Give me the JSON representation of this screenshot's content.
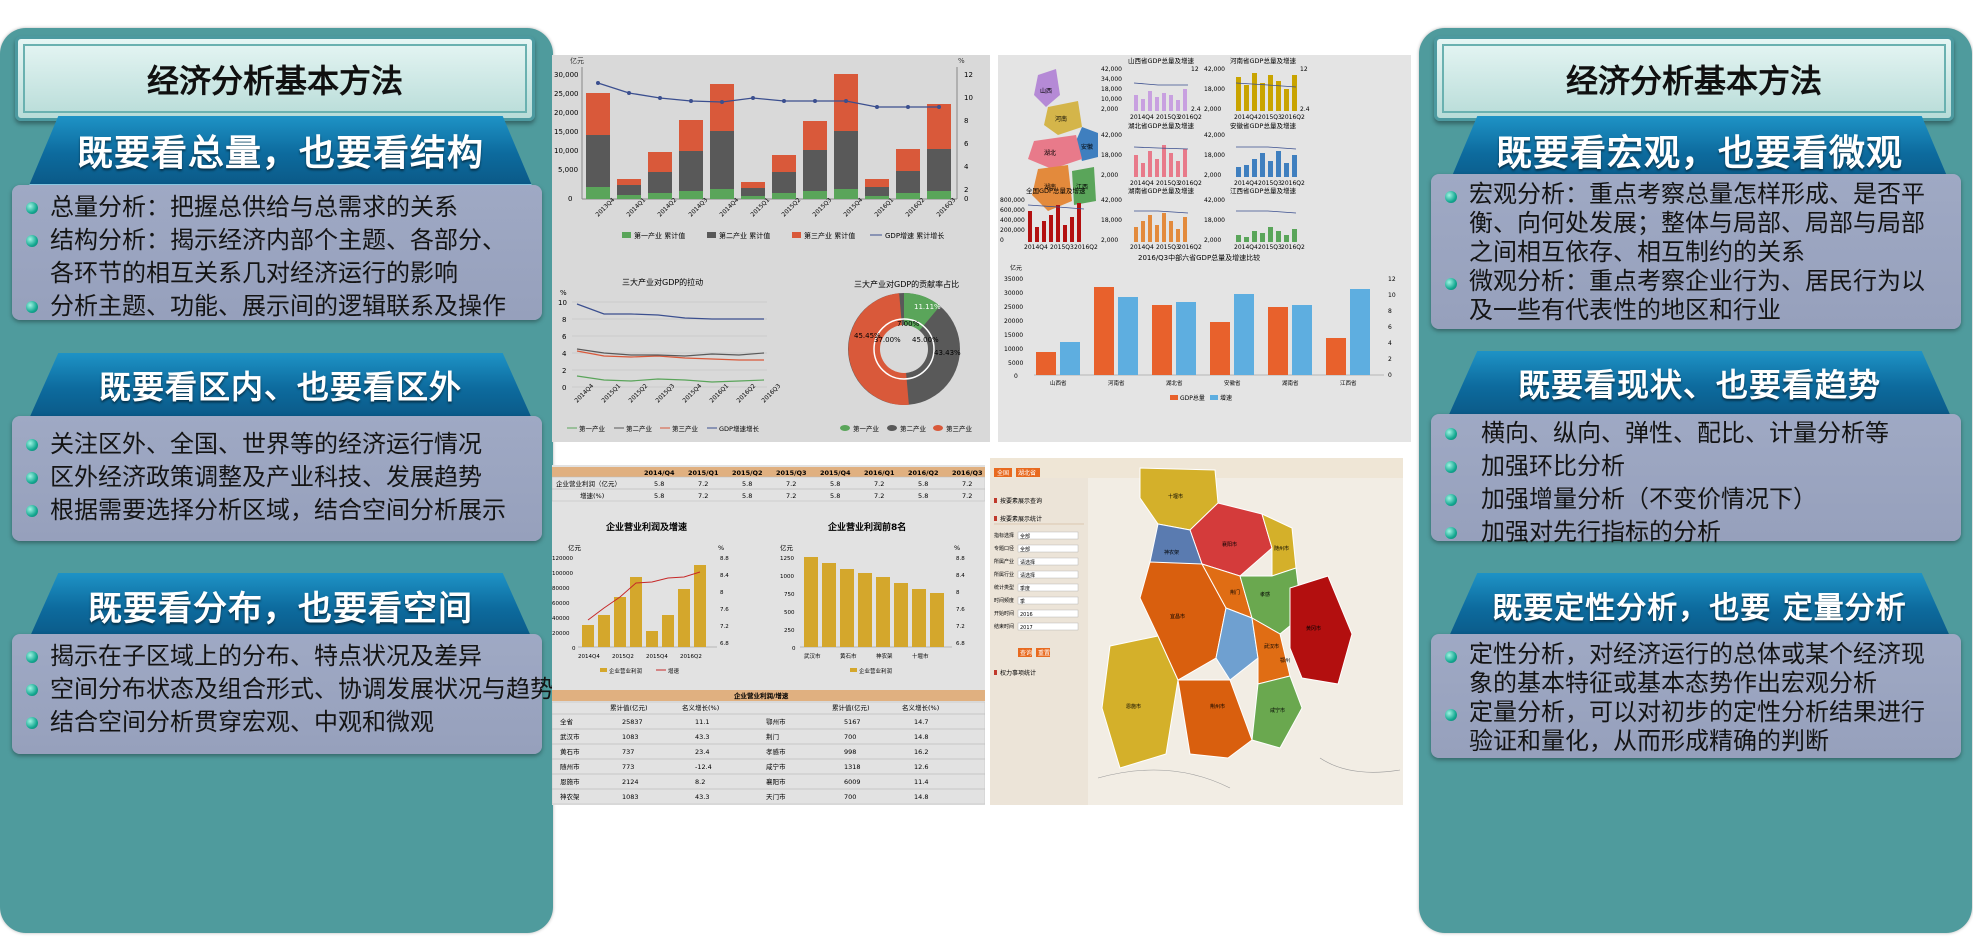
{
  "left": {
    "title": "经济分析基本方法",
    "sections": [
      {
        "heading": "既要看总量，也要看结构",
        "items": [
          "总量分析：把握总供给与总需求的关系",
          "结构分析：揭示经济内部个主题、各部分、",
          "各环节的相互关系几对经济运行的影响",
          "分析主题、功能、展示间的逻辑联系及操作"
        ]
      },
      {
        "heading": "既要看区内、也要看区外",
        "items": [
          "关注区外、全国、世界等的经济运行情况",
          "区外经济政策调整及产业科技、发展趋势",
          "根据需要选择分析区域，结合空间分析展示"
        ]
      },
      {
        "heading": "既要看分布，也要看空间",
        "items": [
          "揭示在子区域上的分布、特点状况及差异",
          "空间分布状态及组合形式、协调发展状况与趋势",
          "结合空间分析贯穿宏观、中观和微观"
        ]
      }
    ]
  },
  "right": {
    "title": "经济分析基本方法",
    "sections": [
      {
        "heading": "既要看宏观，也要看微观",
        "items": [
          "宏观分析：重点考察总量怎样形成、是否平",
          "衡、向何处发展；整体与局部、局部与局部",
          "之间相互依存、相互制约的关系",
          "微观分析：重点考察企业行为、居民行为以",
          "及一些有代表性的地区和行业"
        ]
      },
      {
        "heading": "既要看现状、也要看趋势",
        "items": [
          "横向、纵向、弹性、配比、计量分析等",
          "加强环比分析",
          "加强增量分析（不变价情况下）",
          "加强对先行指标的分析"
        ]
      },
      {
        "heading": "既要定性分析，也要 定量分析",
        "items": [
          "定性分析，对经济运行的总体或某个经济现",
          "象的基本特征或基本态势作出宏观分析",
          "定量分析，可以对初步的定性分析结果进行",
          "验证和量化，从而形成精确的判断"
        ]
      }
    ]
  },
  "shots": {
    "top_left": {
      "chart1": {
        "ylabel_left": "亿元",
        "ylabel_right": "%",
        "ticks_left": [
          "30,000",
          "25,000",
          "20,000",
          "15,000",
          "10,000",
          "5,000",
          "0"
        ],
        "ticks_right": [
          "12",
          "10",
          "8",
          "6",
          "4",
          "2",
          "0"
        ],
        "categories": [
          "2013Q4",
          "2014Q1",
          "2014Q2",
          "2014Q3",
          "2014Q4",
          "2015Q1",
          "2015Q2",
          "2015Q3",
          "2015Q4",
          "2016Q1",
          "2016Q2",
          "2016Q3"
        ],
        "legend": [
          "第一产业 累计值",
          "第二产业 累计值",
          "第三产业 累计值",
          "GDP增速 累计增长"
        ]
      },
      "chart2": {
        "title": "三大产业对GDP的拉动",
        "ylabel": "%",
        "ticks": [
          "10",
          "8",
          "6",
          "4",
          "2",
          "0"
        ],
        "categories": [
          "2014Q4",
          "2015Q1",
          "2015Q2",
          "2015Q3",
          "2015Q4",
          "2016Q1",
          "2016Q2",
          "2016Q3"
        ],
        "legend": [
          "第一产业",
          "第二产业",
          "第三产业",
          "GDP增速增长"
        ]
      },
      "chart3": {
        "title": "三大产业对GDP的贡献率占比",
        "labels": [
          "11.11%",
          "7.00%",
          "45.00%",
          "37.00%",
          "45.45%",
          "43.43%"
        ],
        "legend": [
          "第一产业",
          "第二产业",
          "第三产业"
        ]
      }
    },
    "top_right": {
      "panel_titles": [
        "山西省GDP总量及增速",
        "河南省GDP总量及增速",
        "湖北省GDP总量及增速",
        "安徽省GDP总量及增速",
        "全国GDP总量及增速",
        "湖南省GDP总量及增速",
        "江西省GDP总量及增速"
      ],
      "ticks": [
        "42,000",
        "34,000",
        "18,000",
        "10,000",
        "2,000"
      ],
      "ticks_nat": [
        "800,000",
        "600,000",
        "400,000",
        "200,000",
        "0"
      ],
      "ticks_r": [
        "12",
        "9.6",
        "7.2",
        "4.8",
        "2.4"
      ],
      "xcats": [
        "2014Q4",
        "2015Q3",
        "2016Q2"
      ],
      "map_labels": [
        "山西",
        "河南",
        "安徽",
        "湖北",
        "江西",
        "湖南"
      ],
      "bottom_title": "2016/Q3中部六省GDP总量及增速比较",
      "bottom_ylabel": "亿元",
      "bottom_ticks": [
        "35000",
        "30000",
        "25000",
        "20000",
        "15000",
        "10000",
        "5000",
        "0"
      ],
      "bottom_ticks_r": [
        "12",
        "10",
        "8",
        "6",
        "4",
        "2",
        "0"
      ],
      "bottom_cats": [
        "山西省",
        "河南省",
        "湖北省",
        "安徽省",
        "湖南省",
        "江西省"
      ],
      "bottom_legend": [
        "GDP总量",
        "增速"
      ]
    },
    "bottom_left": {
      "table_head": [
        "",
        "2014/Q4",
        "2015/Q1",
        "2015/Q2",
        "2015/Q3",
        "2015/Q4",
        "2016/Q1",
        "2016/Q2",
        "2016/Q3"
      ],
      "table_rows": [
        [
          "企业营业利润（亿元）",
          "5.8",
          "7.2",
          "5.8",
          "7.2",
          "5.8",
          "7.2",
          "5.8",
          "7.2"
        ],
        [
          "增速(%)",
          "5.8",
          "7.2",
          "5.8",
          "7.2",
          "5.8",
          "7.2",
          "5.8",
          "7.2"
        ]
      ],
      "chart_a": {
        "title": "企业营业利润及增速",
        "ylabel": "亿元",
        "ylabel_r": "%",
        "ticks": [
          "120000",
          "100000",
          "80000",
          "60000",
          "40000",
          "20000",
          "0"
        ],
        "ticks_r": [
          "8.8",
          "8.4",
          "8",
          "7.6",
          "7.2",
          "6.8"
        ],
        "categories": [
          "2014Q4",
          "2015Q2",
          "2015Q4",
          "2016Q2"
        ],
        "legend": [
          "企业营业利润",
          "增速"
        ]
      },
      "chart_b": {
        "title": "企业营业利润前8名",
        "ylabel": "亿元",
        "ylabel_r": "%",
        "ticks": [
          "1250",
          "1000",
          "750",
          "500",
          "250",
          "0"
        ],
        "ticks_r": [
          "8.8",
          "8.4",
          "8",
          "7.6",
          "7.2",
          "6.8"
        ],
        "categories": [
          "武汉市",
          "黄石市",
          "神农架",
          "十堰市"
        ],
        "legend": [
          "企业营业利润"
        ]
      },
      "table2_title": "企业营业利润/增速",
      "table2_head": [
        "",
        "累计值(亿元)",
        "名义增长(%)",
        "",
        "累计值(亿元)",
        "名义增长(%)"
      ],
      "table2_rows": [
        [
          "全省",
          "25837",
          "11.1",
          "鄂州市",
          "5167",
          "14.7"
        ],
        [
          "武汉市",
          "1083",
          "43.3",
          "荆门",
          "700",
          "14.8"
        ],
        [
          "黄石市",
          "737",
          "23.4",
          "孝感市",
          "998",
          "16.2"
        ],
        [
          "随州市",
          "773",
          "-12.4",
          "咸宁市",
          "1318",
          "12.6"
        ],
        [
          "恩施市",
          "2124",
          "8.2",
          "襄阳市",
          "6009",
          "11.4"
        ],
        [
          "神农架",
          "1083",
          "43.3",
          "天门市",
          "700",
          "14.8"
        ]
      ]
    },
    "bottom_right": {
      "tabs": [
        "全国",
        "湖北省"
      ],
      "menu1": "按要素展示查询",
      "menu2": "按要素展示统计",
      "fields": [
        "指标选择",
        "专题口径",
        "所属产业",
        "所属行业",
        "统计类型",
        "时间频度",
        "开始时间",
        "结束时间"
      ],
      "field_values": [
        "全部",
        "全部",
        "请选择",
        "请选择",
        "季度",
        "季",
        "2016",
        "2017"
      ],
      "btn_query": "查询",
      "btn_reset": "重置",
      "menu3": "权力事项统计",
      "map_labels": [
        "十堰市",
        "襄阳市",
        "随州市",
        "神农架",
        "荆门",
        "孝感",
        "恩施市",
        "宜昌市",
        "荆州市",
        "武汉市",
        "黄冈市",
        "咸宁市",
        "鄂州"
      ]
    }
  }
}
